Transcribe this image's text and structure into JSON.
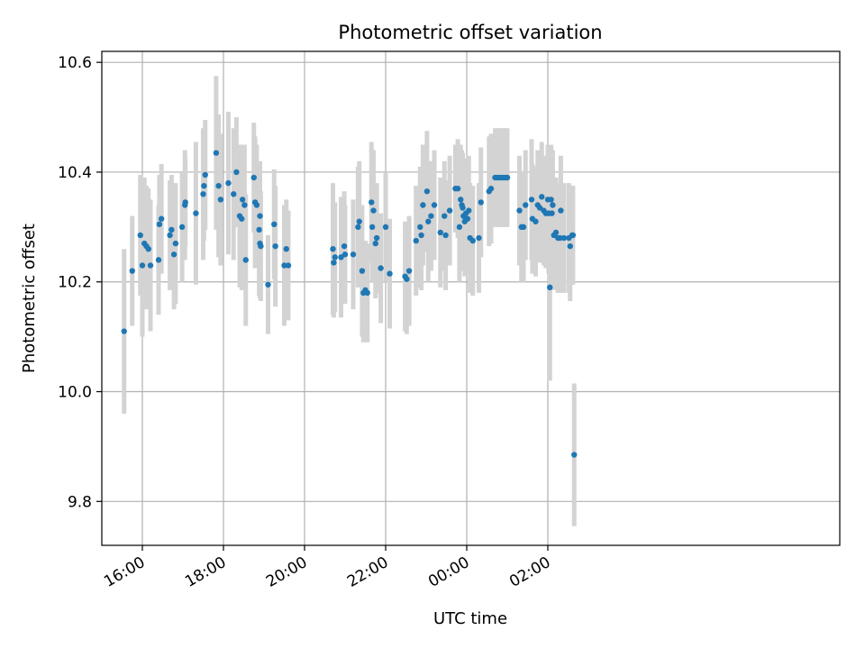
{
  "chart_data": {
    "type": "scatter",
    "title": "Photometric offset variation",
    "xlabel": "UTC time",
    "ylabel": "Photometric offset",
    "xlim": [
      15.0,
      33.2
    ],
    "ylim": [
      9.72,
      10.62
    ],
    "grid": true,
    "x_ticks": [
      {
        "value": 16,
        "label": "16:00"
      },
      {
        "value": 18,
        "label": "18:00"
      },
      {
        "value": 20,
        "label": "20:00"
      },
      {
        "value": 22,
        "label": "22:00"
      },
      {
        "value": 24,
        "label": "00:00"
      },
      {
        "value": 26,
        "label": "02:00"
      }
    ],
    "y_ticks": [
      {
        "value": 9.8,
        "label": "9.8"
      },
      {
        "value": 10.0,
        "label": "10.0"
      },
      {
        "value": 10.2,
        "label": "10.2"
      },
      {
        "value": 10.4,
        "label": "10.4"
      },
      {
        "value": 10.6,
        "label": "10.6"
      }
    ],
    "colors": {
      "points": "#1f77b4",
      "errorbars": "#d3d3d3",
      "grid": "#b0b0b0"
    },
    "points": [
      [
        15.55,
        10.11,
        0.15
      ],
      [
        15.75,
        10.22,
        0.1
      ],
      [
        15.95,
        10.285,
        0.11
      ],
      [
        16.0,
        10.23,
        0.13
      ],
      [
        16.05,
        10.27,
        0.12
      ],
      [
        16.1,
        10.265,
        0.11
      ],
      [
        16.15,
        10.26,
        0.11
      ],
      [
        16.2,
        10.23,
        0.12
      ],
      [
        16.4,
        10.24,
        0.1
      ],
      [
        16.42,
        10.305,
        0.09
      ],
      [
        16.47,
        10.315,
        0.1
      ],
      [
        16.68,
        10.285,
        0.1
      ],
      [
        16.72,
        10.295,
        0.1
      ],
      [
        16.78,
        10.25,
        0.1
      ],
      [
        16.82,
        10.27,
        0.11
      ],
      [
        16.98,
        10.3,
        0.1
      ],
      [
        17.05,
        10.34,
        0.1
      ],
      [
        17.06,
        10.345,
        0.08
      ],
      [
        17.32,
        10.325,
        0.13
      ],
      [
        17.5,
        10.36,
        0.12
      ],
      [
        17.52,
        10.375,
        0.1
      ],
      [
        17.55,
        10.395,
        0.1
      ],
      [
        17.82,
        10.435,
        0.14
      ],
      [
        17.88,
        10.375,
        0.13
      ],
      [
        17.93,
        10.35,
        0.12
      ],
      [
        18.12,
        10.38,
        0.13
      ],
      [
        18.25,
        10.36,
        0.12
      ],
      [
        18.32,
        10.4,
        0.1
      ],
      [
        18.4,
        10.32,
        0.13
      ],
      [
        18.45,
        10.315,
        0.13
      ],
      [
        18.47,
        10.35,
        0.1
      ],
      [
        18.52,
        10.34,
        0.11
      ],
      [
        18.55,
        10.24,
        0.12
      ],
      [
        18.75,
        10.39,
        0.1
      ],
      [
        18.78,
        10.345,
        0.12
      ],
      [
        18.82,
        10.34,
        0.11
      ],
      [
        18.88,
        10.295,
        0.12
      ],
      [
        18.9,
        10.32,
        0.1
      ],
      [
        18.9,
        10.27,
        0.1
      ],
      [
        18.92,
        10.265,
        0.1
      ],
      [
        19.1,
        10.195,
        0.09
      ],
      [
        19.25,
        10.305,
        0.1
      ],
      [
        19.28,
        10.265,
        0.11
      ],
      [
        19.5,
        10.23,
        0.11
      ],
      [
        19.55,
        10.26,
        0.09
      ],
      [
        19.6,
        10.23,
        0.1
      ],
      [
        20.7,
        10.26,
        0.12
      ],
      [
        20.72,
        10.235,
        0.1
      ],
      [
        20.75,
        10.245,
        0.1
      ],
      [
        20.9,
        10.245,
        0.11
      ],
      [
        20.98,
        10.265,
        0.1
      ],
      [
        21.0,
        10.25,
        0.09
      ],
      [
        21.2,
        10.25,
        0.1
      ],
      [
        21.32,
        10.3,
        0.11
      ],
      [
        21.35,
        10.31,
        0.11
      ],
      [
        21.42,
        10.22,
        0.12
      ],
      [
        21.45,
        10.18,
        0.09
      ],
      [
        21.5,
        10.185,
        0.09
      ],
      [
        21.55,
        10.18,
        0.09
      ],
      [
        21.65,
        10.345,
        0.11
      ],
      [
        21.67,
        10.3,
        0.1
      ],
      [
        21.7,
        10.33,
        0.11
      ],
      [
        21.75,
        10.27,
        0.1
      ],
      [
        21.78,
        10.28,
        0.1
      ],
      [
        21.88,
        10.225,
        0.1
      ],
      [
        22.0,
        10.3,
        0.1
      ],
      [
        22.1,
        10.215,
        0.1
      ],
      [
        22.48,
        10.21,
        0.1
      ],
      [
        22.52,
        10.205,
        0.1
      ],
      [
        22.58,
        10.22,
        0.1
      ],
      [
        22.75,
        10.275,
        0.1
      ],
      [
        22.85,
        10.3,
        0.11
      ],
      [
        22.88,
        10.285,
        0.1
      ],
      [
        22.92,
        10.34,
        0.11
      ],
      [
        23.02,
        10.365,
        0.11
      ],
      [
        23.05,
        10.31,
        0.11
      ],
      [
        23.12,
        10.32,
        0.1
      ],
      [
        23.2,
        10.34,
        0.1
      ],
      [
        23.35,
        10.29,
        0.1
      ],
      [
        23.45,
        10.32,
        0.1
      ],
      [
        23.48,
        10.285,
        0.1
      ],
      [
        23.58,
        10.33,
        0.1
      ],
      [
        23.72,
        10.37,
        0.08
      ],
      [
        23.78,
        10.37,
        0.09
      ],
      [
        23.82,
        10.3,
        0.1
      ],
      [
        23.85,
        10.35,
        0.1
      ],
      [
        23.88,
        10.34,
        0.1
      ],
      [
        23.9,
        10.335,
        0.1
      ],
      [
        23.92,
        10.32,
        0.1
      ],
      [
        23.95,
        10.31,
        0.1
      ],
      [
        23.98,
        10.325,
        0.1
      ],
      [
        24.02,
        10.315,
        0.1
      ],
      [
        24.05,
        10.33,
        0.1
      ],
      [
        24.08,
        10.28,
        0.1
      ],
      [
        24.15,
        10.275,
        0.1
      ],
      [
        24.3,
        10.28,
        0.1
      ],
      [
        24.35,
        10.345,
        0.1
      ],
      [
        24.55,
        10.365,
        0.1
      ],
      [
        24.6,
        10.37,
        0.1
      ],
      [
        24.7,
        10.39,
        0.09
      ],
      [
        24.75,
        10.39,
        0.09
      ],
      [
        24.8,
        10.39,
        0.09
      ],
      [
        24.85,
        10.39,
        0.09
      ],
      [
        24.9,
        10.39,
        0.09
      ],
      [
        24.95,
        10.39,
        0.09
      ],
      [
        25.0,
        10.39,
        0.09
      ],
      [
        25.3,
        10.33,
        0.1
      ],
      [
        25.35,
        10.3,
        0.1
      ],
      [
        25.4,
        10.3,
        0.1
      ],
      [
        25.45,
        10.34,
        0.1
      ],
      [
        25.6,
        10.35,
        0.11
      ],
      [
        25.62,
        10.315,
        0.1
      ],
      [
        25.7,
        10.31,
        0.1
      ],
      [
        25.75,
        10.34,
        0.1
      ],
      [
        25.8,
        10.335,
        0.1
      ],
      [
        25.85,
        10.355,
        0.1
      ],
      [
        25.9,
        10.33,
        0.1
      ],
      [
        25.95,
        10.325,
        0.1
      ],
      [
        26.0,
        10.35,
        0.1
      ],
      [
        26.02,
        10.325,
        0.11
      ],
      [
        26.05,
        10.19,
        0.17
      ],
      [
        26.08,
        10.35,
        0.1
      ],
      [
        26.1,
        10.325,
        0.1
      ],
      [
        26.12,
        10.34,
        0.1
      ],
      [
        26.15,
        10.285,
        0.1
      ],
      [
        26.2,
        10.29,
        0.1
      ],
      [
        26.25,
        10.28,
        0.1
      ],
      [
        26.3,
        10.28,
        0.1
      ],
      [
        26.32,
        10.33,
        0.1
      ],
      [
        26.4,
        10.28,
        0.1
      ],
      [
        26.52,
        10.28,
        0.1
      ],
      [
        26.55,
        10.265,
        0.1
      ],
      [
        26.6,
        10.285,
        0.09
      ],
      [
        26.62,
        10.285,
        0.09
      ],
      [
        26.65,
        9.885,
        0.13
      ]
    ]
  }
}
